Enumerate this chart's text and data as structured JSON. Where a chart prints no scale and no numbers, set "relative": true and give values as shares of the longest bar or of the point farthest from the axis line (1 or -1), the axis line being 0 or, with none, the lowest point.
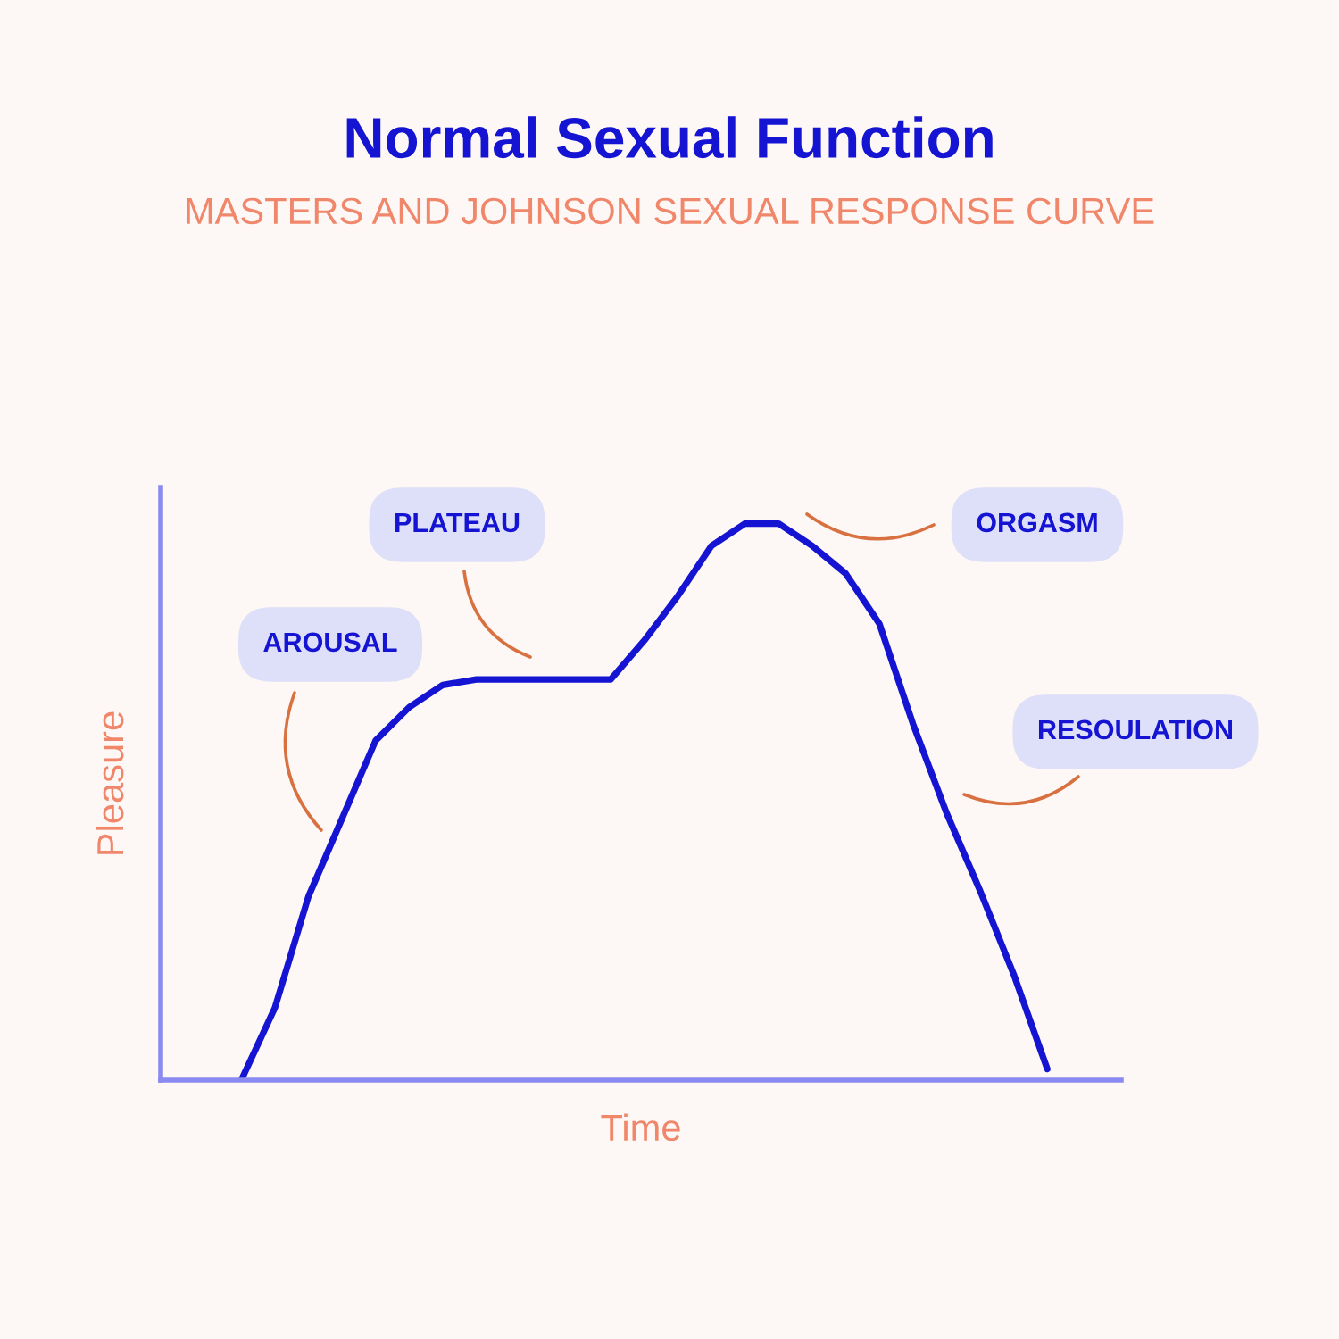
{
  "chart_data": {
    "type": "line",
    "title": "Normal Sexual Function",
    "subtitle": "MASTERS AND JOHNSON SEXUAL RESPONSE CURVE",
    "xlabel": "Time",
    "ylabel": "Pleasure",
    "relative": true,
    "grid": false,
    "legend": false,
    "marker": "none",
    "line_style": "solid",
    "categories": [
      null,
      null,
      null,
      null,
      null,
      null,
      null,
      null,
      null,
      null,
      null,
      null,
      null,
      null,
      null,
      null,
      null,
      null,
      null,
      null,
      null,
      null,
      null,
      null,
      null
    ],
    "series": [
      {
        "color": "#1414d2",
        "values": [
          0,
          0.13,
          0.33,
          0.47,
          0.61,
          0.67,
          0.71,
          0.72,
          0.72,
          0.72,
          0.72,
          0.72,
          0.79,
          0.87,
          0.96,
          1.0,
          1.0,
          0.96,
          0.91,
          0.82,
          0.64,
          0.48,
          0.34,
          0.19,
          0.02
        ]
      }
    ],
    "annotations": [
      "AROUSAL",
      "PLATEAU",
      "ORGASM",
      "RESOULATION"
    ]
  }
}
